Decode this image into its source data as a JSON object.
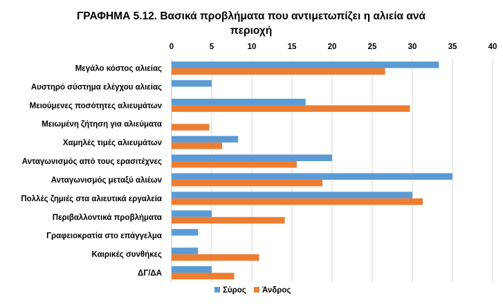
{
  "chart_data": {
    "type": "bar",
    "orientation": "horizontal",
    "title_line1": "ΓΡΑΦΗΜΑ 5.12.  Βασικά προβλήματα που αντιμετωπίζει η αλιεία ανά",
    "title_line2": "περιοχή",
    "xlabel": "",
    "ylabel": "",
    "xlim": [
      0,
      40
    ],
    "x_ticks": [
      0,
      5,
      10,
      15,
      20,
      25,
      30,
      35,
      40
    ],
    "x_axis_position": "top",
    "grid": true,
    "legend_position": "bottom",
    "categories": [
      "Μεγάλο κόστος αλιείας",
      "Αυστηρό σύστημα ελέγχου αλιείας",
      "Μειούμενες ποσότητες αλιευμάτων",
      "Μειωμένη ζήτηση για αλιεύματα",
      "Χαμηλές τιμές αλιευμάτων",
      "Ανταγωνισμός από τους ερασιτέχνες",
      "Ανταγωνισμός μεταξύ αλιέων",
      "Πολλές ζημιές στα αλιευτικά εργαλεία",
      "Περιβαλλοντικά προβλήματα",
      "Γραφειοκρατία στο επάγγελμα",
      "Καιρικές συνθήκες",
      "ΔΓ/ΔΑ"
    ],
    "series": [
      {
        "name": "Σύρος",
        "color": "#5b9bd5",
        "values": [
          33.3,
          5.0,
          16.7,
          0,
          8.3,
          20.0,
          35.0,
          30.0,
          5.0,
          3.3,
          3.3,
          5.0
        ]
      },
      {
        "name": "Άνδρος",
        "color": "#ed7d31",
        "values": [
          26.6,
          0,
          29.7,
          4.7,
          6.3,
          15.6,
          18.8,
          31.3,
          14.1,
          0,
          10.9,
          7.8
        ]
      }
    ]
  }
}
